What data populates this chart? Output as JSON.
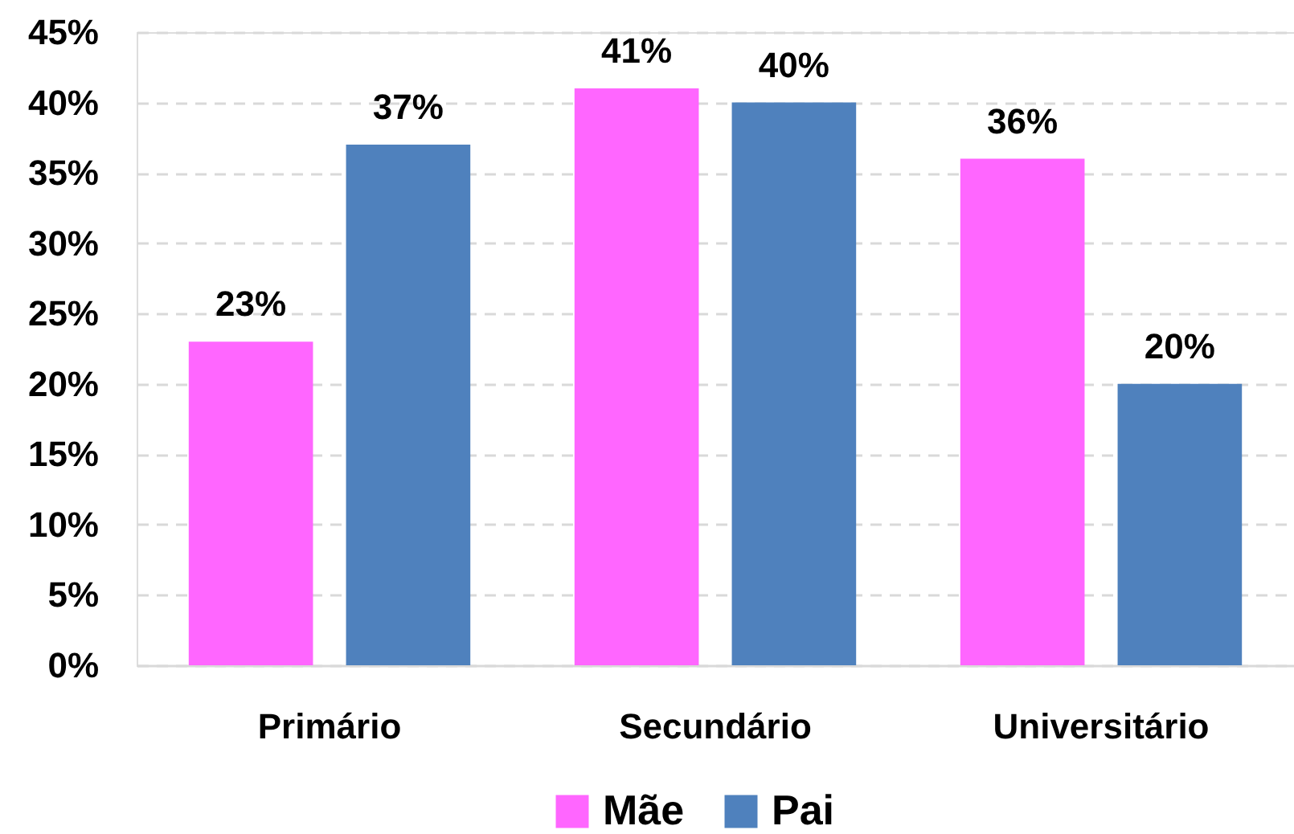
{
  "chart_data": {
    "type": "bar",
    "categories": [
      "Primário",
      "Secundário",
      "Universitário"
    ],
    "series": [
      {
        "name": "Mãe",
        "color": "#ff66ff",
        "values": [
          23,
          41,
          36
        ],
        "value_labels": [
          "23%",
          "41%",
          "36%"
        ]
      },
      {
        "name": "Pai",
        "color": "#4f81bd",
        "values": [
          37,
          40,
          20
        ],
        "value_labels": [
          "37%",
          "40%",
          "20%"
        ]
      }
    ],
    "ylim": [
      0,
      45
    ],
    "yticks": [
      {
        "value": 0,
        "label": "0%"
      },
      {
        "value": 5,
        "label": "5%"
      },
      {
        "value": 10,
        "label": "10%"
      },
      {
        "value": 15,
        "label": "15%"
      },
      {
        "value": 20,
        "label": "20%"
      },
      {
        "value": 25,
        "label": "25%"
      },
      {
        "value": 30,
        "label": "30%"
      },
      {
        "value": 35,
        "label": "35%"
      },
      {
        "value": 40,
        "label": "40%"
      },
      {
        "value": 45,
        "label": "45%"
      }
    ],
    "grid": "y",
    "legend": "bottom"
  }
}
